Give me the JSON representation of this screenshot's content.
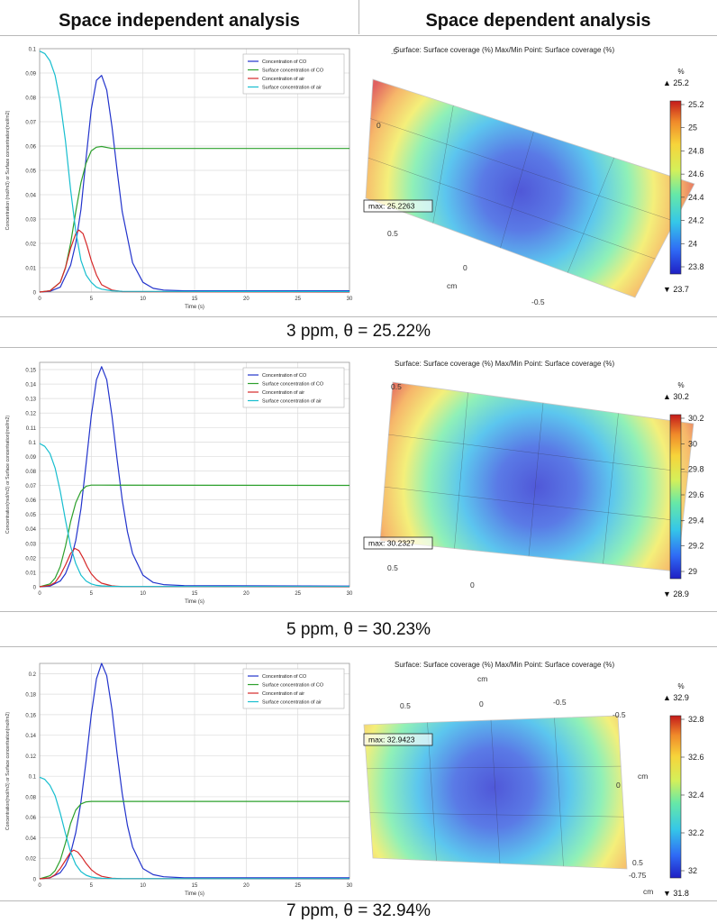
{
  "headers": {
    "left": "Space independent analysis",
    "right": "Space dependent analysis"
  },
  "colors": {
    "co": "#2233cc",
    "surface_co": "#2ca02c",
    "air": "#d62728",
    "surface_air": "#17becf"
  },
  "cases": [
    {
      "caption": "3 ppm, θ = 25.22%",
      "chart_data": {
        "type": "line",
        "xlabel": "Time (s)",
        "ylabel": "Concentration (mol/m3) or Surface concentration(mol/m2)",
        "xlim": [
          0,
          30
        ],
        "ylim": [
          0,
          0.1
        ],
        "xticks": [
          0,
          5,
          10,
          15,
          20,
          25,
          30
        ],
        "yticks": [
          0,
          0.01,
          0.02,
          0.03,
          0.04,
          0.05,
          0.06,
          0.07,
          0.08,
          0.09,
          0.1
        ],
        "ytick_labels": [
          "0",
          "0.01",
          "0.02",
          "0.03",
          "0.04",
          "0.05",
          "0.06",
          "0.07",
          "0.08",
          "0.09",
          "0.1"
        ],
        "grid": true,
        "legend_position": "top-right",
        "series": [
          {
            "name": "Concentration of CO",
            "x": [
              0,
              1,
              2,
              3,
              3.5,
              4,
              4.5,
              5,
              5.5,
              6,
              6.5,
              7,
              7.5,
              8,
              9,
              10,
              11,
              12,
              14,
              30
            ],
            "y": [
              0,
              0.0003,
              0.002,
              0.011,
              0.02,
              0.034,
              0.055,
              0.075,
              0.087,
              0.089,
              0.083,
              0.068,
              0.05,
              0.033,
              0.012,
              0.004,
              0.0015,
              0.0008,
              0.0005,
              0.0005
            ]
          },
          {
            "name": "Surface concentration of CO",
            "x": [
              0,
              1,
              2,
              2.5,
              3,
              3.5,
              4,
              4.5,
              5,
              5.5,
              6,
              7,
              30
            ],
            "y": [
              0,
              0.0005,
              0.004,
              0.01,
              0.02,
              0.033,
              0.045,
              0.053,
              0.058,
              0.0595,
              0.0598,
              0.059,
              0.059
            ]
          },
          {
            "name": "Concentration of air",
            "x": [
              0,
              1,
              2,
              2.5,
              3,
              3.5,
              3.8,
              4.2,
              4.6,
              5,
              5.5,
              6,
              7,
              8,
              30
            ],
            "y": [
              0,
              0.0005,
              0.004,
              0.01,
              0.018,
              0.024,
              0.0255,
              0.024,
              0.019,
              0.013,
              0.007,
              0.003,
              0.0008,
              0.0002,
              0
            ]
          },
          {
            "name": "Surface concentration of air",
            "x": [
              0,
              0.5,
              1,
              1.5,
              2,
              2.5,
              3,
              3.5,
              4,
              4.5,
              5,
              5.5,
              6,
              7,
              8,
              30
            ],
            "y": [
              0.099,
              0.098,
              0.095,
              0.089,
              0.078,
              0.062,
              0.042,
              0.025,
              0.013,
              0.007,
              0.004,
              0.002,
              0.0012,
              0.0005,
              0.0003,
              0.0002
            ]
          }
        ]
      },
      "map": {
        "title": "Surface: Surface coverage (%)  Max/Min Point: Surface coverage (%)",
        "unit": "%",
        "max_label": "25.2",
        "min_label": "23.7",
        "ticks": [
          "25.2",
          "25",
          "24.8",
          "24.6",
          "24.4",
          "24.2",
          "24",
          "23.8"
        ],
        "max_box": "max: 25.2263",
        "axis_labels": [
          ".5",
          "0",
          "0.5",
          "0",
          "cm",
          "-0.5"
        ]
      }
    },
    {
      "caption": "5 ppm, θ = 30.23%",
      "chart_data": {
        "type": "line",
        "xlabel": "Time (s)",
        "ylabel": "Concentration(mol/m3) or Surface concentration(mol/m2)",
        "xlim": [
          0,
          30
        ],
        "ylim": [
          0,
          0.155
        ],
        "xticks": [
          0,
          5,
          10,
          15,
          20,
          25,
          30
        ],
        "yticks": [
          0,
          0.01,
          0.02,
          0.03,
          0.04,
          0.05,
          0.06,
          0.07,
          0.08,
          0.09,
          0.1,
          0.11,
          0.12,
          0.13,
          0.14,
          0.15
        ],
        "ytick_labels": [
          "0",
          "0.01",
          "0.02",
          "0.03",
          "0.04",
          "0.05",
          "0.06",
          "0.07",
          "0.08",
          "0.09",
          "0.1",
          "0.11",
          "0.12",
          "0.13",
          "0.14",
          "0.15"
        ],
        "grid": true,
        "legend_position": "top-right",
        "series": [
          {
            "name": "Concentration of CO",
            "x": [
              0,
              1,
              2,
              2.5,
              3,
              3.5,
              4,
              4.5,
              5,
              5.5,
              6,
              6.5,
              7,
              7.5,
              8,
              8.5,
              9,
              10,
              11,
              12,
              14,
              30
            ],
            "y": [
              0,
              0.0005,
              0.004,
              0.009,
              0.018,
              0.032,
              0.054,
              0.085,
              0.118,
              0.143,
              0.152,
              0.143,
              0.118,
              0.088,
              0.06,
              0.038,
              0.023,
              0.008,
              0.003,
              0.0015,
              0.0008,
              0.0005
            ]
          },
          {
            "name": "Surface concentration of CO",
            "x": [
              0,
              1,
              1.5,
              2,
              2.5,
              3,
              3.5,
              4,
              4.5,
              5,
              6,
              30
            ],
            "y": [
              0,
              0.002,
              0.006,
              0.014,
              0.028,
              0.045,
              0.058,
              0.066,
              0.0695,
              0.0702,
              0.0702,
              0.07
            ]
          },
          {
            "name": "Concentration of air",
            "x": [
              0,
              1,
              1.5,
              2,
              2.5,
              3,
              3.4,
              3.8,
              4.2,
              4.6,
              5,
              5.5,
              6,
              7,
              8,
              30
            ],
            "y": [
              0,
              0.001,
              0.003,
              0.008,
              0.015,
              0.023,
              0.0265,
              0.025,
              0.02,
              0.014,
              0.009,
              0.005,
              0.0025,
              0.0006,
              0.0002,
              0
            ]
          },
          {
            "name": "Surface concentration of air",
            "x": [
              0,
              0.5,
              1,
              1.5,
              2,
              2.5,
              3,
              3.5,
              4,
              4.5,
              5,
              5.5,
              6,
              7,
              8,
              30
            ],
            "y": [
              0.099,
              0.097,
              0.092,
              0.082,
              0.066,
              0.046,
              0.028,
              0.016,
              0.008,
              0.004,
              0.002,
              0.001,
              0.0006,
              0.0003,
              0.0002,
              0.0002
            ]
          }
        ]
      },
      "map": {
        "title": "Surface: Surface coverage (%)  Max/Min Point: Surface coverage (%)",
        "unit": "%",
        "max_label": "30.2",
        "min_label": "28.9",
        "ticks": [
          "30.2",
          "30",
          "29.8",
          "29.6",
          "29.4",
          "29.2",
          "29"
        ],
        "max_box": "max: 30.2327",
        "axis_labels": [
          "0.5",
          "0.5",
          "0"
        ]
      }
    },
    {
      "caption": "7 ppm, θ = 32.94%",
      "chart_data": {
        "type": "line",
        "xlabel": "Time (s)",
        "ylabel": "Concentration(mol/m3) or Surface concentration(mol/m2)",
        "xlim": [
          0,
          30
        ],
        "ylim": [
          0,
          0.21
        ],
        "xticks": [
          0,
          5,
          10,
          15,
          20,
          25,
          30
        ],
        "yticks": [
          0,
          0.02,
          0.04,
          0.06,
          0.08,
          0.1,
          0.12,
          0.14,
          0.16,
          0.18,
          0.2
        ],
        "ytick_labels": [
          "0",
          "0.02",
          "0.04",
          "0.06",
          "0.08",
          "0.1",
          "0.12",
          "0.14",
          "0.16",
          "0.18",
          "0.2"
        ],
        "grid": true,
        "legend_position": "top-right",
        "series": [
          {
            "name": "Concentration of CO",
            "x": [
              0,
              1,
              2,
              2.5,
              3,
              3.5,
              4,
              4.5,
              5,
              5.5,
              6,
              6.5,
              7,
              7.5,
              8,
              8.5,
              9,
              10,
              11,
              12,
              14,
              30
            ],
            "y": [
              0,
              0.001,
              0.006,
              0.013,
              0.025,
              0.045,
              0.075,
              0.115,
              0.16,
              0.195,
              0.21,
              0.198,
              0.165,
              0.122,
              0.083,
              0.052,
              0.031,
              0.01,
              0.004,
              0.002,
              0.001,
              0.001
            ]
          },
          {
            "name": "Surface concentration of CO",
            "x": [
              0,
              1,
              1.5,
              2,
              2.5,
              3,
              3.5,
              4,
              4.5,
              5,
              6,
              30
            ],
            "y": [
              0,
              0.003,
              0.008,
              0.018,
              0.035,
              0.054,
              0.067,
              0.073,
              0.075,
              0.0755,
              0.0755,
              0.0755
            ]
          },
          {
            "name": "Concentration of air",
            "x": [
              0,
              1,
              1.5,
              2,
              2.5,
              3,
              3.3,
              3.7,
              4.1,
              4.5,
              5,
              5.5,
              6,
              7,
              8,
              30
            ],
            "y": [
              0,
              0.001,
              0.004,
              0.01,
              0.018,
              0.026,
              0.028,
              0.026,
              0.021,
              0.015,
              0.009,
              0.005,
              0.0025,
              0.0006,
              0.0002,
              0
            ]
          },
          {
            "name": "Surface concentration of air",
            "x": [
              0,
              0.5,
              1,
              1.5,
              2,
              2.5,
              3,
              3.5,
              4,
              4.5,
              5,
              5.5,
              6,
              7,
              8,
              30
            ],
            "y": [
              0.099,
              0.097,
              0.091,
              0.081,
              0.064,
              0.044,
              0.026,
              0.014,
              0.007,
              0.0035,
              0.0018,
              0.001,
              0.0006,
              0.0003,
              0.0002,
              0.0002
            ]
          }
        ]
      },
      "map": {
        "title": "Surface: Surface coverage (%)  Max/Min Point: Surface coverage (%)",
        "unit": "%",
        "max_label": "32.9",
        "min_label": "31.8",
        "ticks": [
          "32.8",
          "32.6",
          "32.4",
          "32.2",
          "32"
        ],
        "max_box": "max: 32.9423",
        "axis_labels": [
          "cm",
          "0.5",
          "0",
          "-0.5",
          "-0.5",
          "cm",
          "0",
          "0.5",
          "-0.75",
          "cm"
        ]
      }
    }
  ]
}
